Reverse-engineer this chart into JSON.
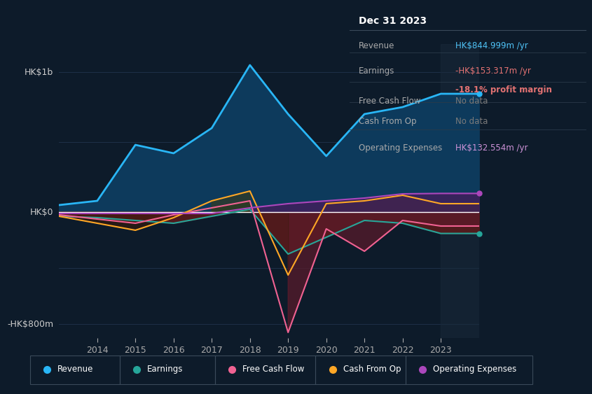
{
  "background_color": "#0d1b2a",
  "plot_bg_color": "#0d1b2a",
  "title_box": {
    "date": "Dec 31 2023",
    "rows": [
      {
        "label": "Revenue",
        "value": "HK$844.999m /yr",
        "value_color": "#4fc3f7"
      },
      {
        "label": "Earnings",
        "value": "-HK$153.317m /yr",
        "value_color": "#e57373",
        "sub": "-18.1% profit margin",
        "sub_color": "#e57373"
      },
      {
        "label": "Free Cash Flow",
        "value": "No data",
        "value_color": "#7a7a7a"
      },
      {
        "label": "Cash From Op",
        "value": "No data",
        "value_color": "#7a7a7a"
      },
      {
        "label": "Operating Expenses",
        "value": "HK$132.554m /yr",
        "value_color": "#ce93d8"
      }
    ]
  },
  "years": [
    2013,
    2014,
    2015,
    2016,
    2017,
    2018,
    2019,
    2020,
    2021,
    2022,
    2023,
    2024
  ],
  "revenue": [
    50,
    80,
    480,
    420,
    600,
    1050,
    700,
    400,
    700,
    750,
    845,
    845
  ],
  "earnings": [
    -30,
    -40,
    -60,
    -80,
    -30,
    20,
    -300,
    -180,
    -60,
    -80,
    -153,
    -153
  ],
  "free_cash_flow": [
    -20,
    -50,
    -80,
    -20,
    30,
    80,
    -860,
    -120,
    -280,
    -60,
    -100,
    -100
  ],
  "cash_from_op": [
    -30,
    -80,
    -130,
    -40,
    80,
    150,
    -450,
    60,
    80,
    120,
    60,
    60
  ],
  "operating_expenses": [
    -10,
    -10,
    -10,
    -10,
    -10,
    30,
    60,
    80,
    100,
    130,
    133,
    133
  ],
  "revenue_color": "#29b6f6",
  "revenue_fill": "#0d3a5c",
  "earnings_color": "#26a69a",
  "earnings_fill": "#5c1a1a",
  "free_cash_flow_color": "#f06292",
  "cash_from_op_color": "#ffa726",
  "cash_from_op_fill_pos": "#3a3a1a",
  "operating_expenses_color": "#ab47bc",
  "operating_expenses_fill": "#4a1a5c",
  "zero_line_color": "#ffffff",
  "grid_color": "#1e3048",
  "tick_color": "#aaaaaa",
  "label_color": "#cccccc",
  "ylabel_top": "HK$1b",
  "ylabel_bottom": "-HK$800m",
  "ylim": [
    -900,
    1200
  ],
  "xtick_years": [
    2014,
    2015,
    2016,
    2017,
    2018,
    2019,
    2020,
    2021,
    2022,
    2023
  ],
  "legend_items": [
    {
      "label": "Revenue",
      "color": "#29b6f6"
    },
    {
      "label": "Earnings",
      "color": "#26a69a"
    },
    {
      "label": "Free Cash Flow",
      "color": "#f06292"
    },
    {
      "label": "Cash From Op",
      "color": "#ffa726"
    },
    {
      "label": "Operating Expenses",
      "color": "#ab47bc"
    }
  ],
  "info_box_bg": "#111820",
  "info_border_color": "#3a4a5a",
  "row_divider_color": "#2a3a4a",
  "legend_border_color": "#3a4a5a",
  "shade_color": "#1a2a3a",
  "shade_alpha": 0.5,
  "grid_levels": [
    500,
    1000,
    -400,
    -800
  ]
}
